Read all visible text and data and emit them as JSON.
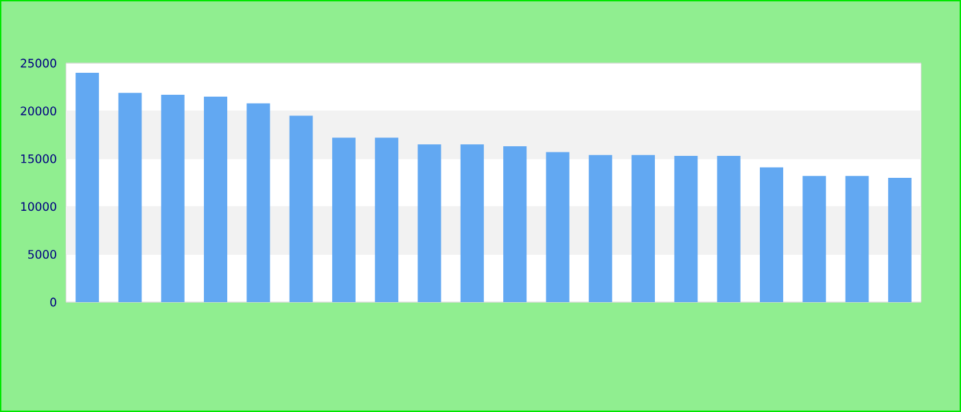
{
  "chart_data": {
    "type": "bar",
    "categories": [
      null,
      null,
      null,
      null,
      null,
      null,
      null,
      null,
      null,
      null,
      null,
      null,
      null,
      null,
      null,
      null,
      null,
      null,
      null,
      null
    ],
    "values": [
      24000,
      21900,
      21700,
      21500,
      20800,
      19500,
      17200,
      17200,
      16500,
      16500,
      16300,
      15700,
      15400,
      15400,
      15300,
      15300,
      14100,
      13200,
      13200,
      13000
    ],
    "color": "#62a8f2",
    "ylim": [
      0,
      25000
    ],
    "yticks": [
      0,
      5000,
      10000,
      15000,
      20000,
      25000
    ],
    "grid": "y"
  }
}
